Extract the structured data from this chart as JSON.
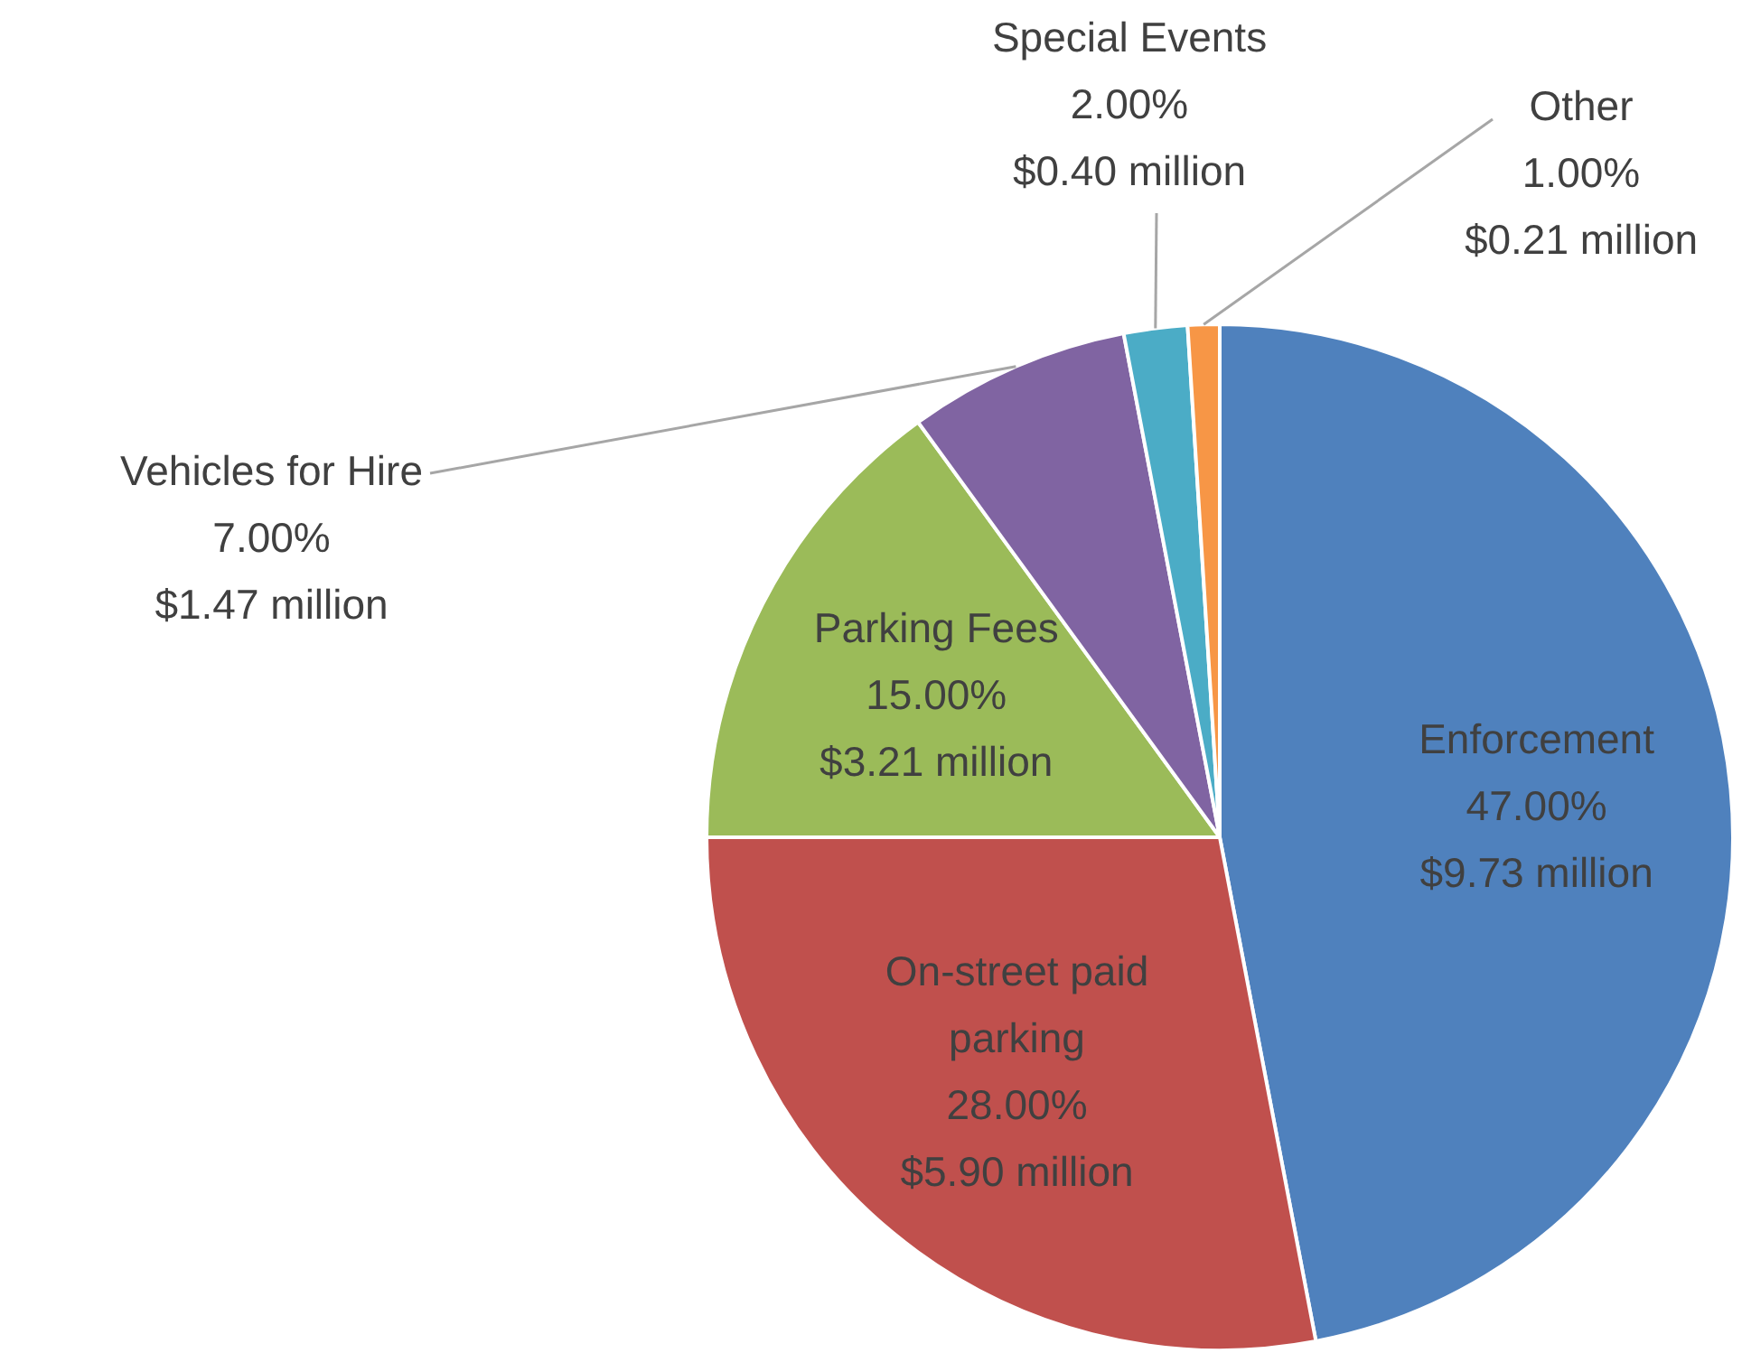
{
  "chart_data": {
    "type": "pie",
    "categories": [
      "Enforcement",
      "On-street paid parking",
      "Parking Fees",
      "Vehicles for Hire",
      "Special Events",
      "Other"
    ],
    "values": [
      47,
      28,
      15,
      7,
      2,
      1
    ],
    "colors": [
      "#4f81bd",
      "#c0504d",
      "#9bbb59",
      "#8064a2",
      "#4bacc6",
      "#f79646"
    ],
    "value_labels": [
      "47.00%\n$9.73 million",
      "28.00%\n$5.90 million",
      "15.00%\n$3.21 million",
      "7.00%\n$1.47 million",
      "2.00%\n$0.40 million",
      "1.00%\n$0.21 million"
    ]
  }
}
